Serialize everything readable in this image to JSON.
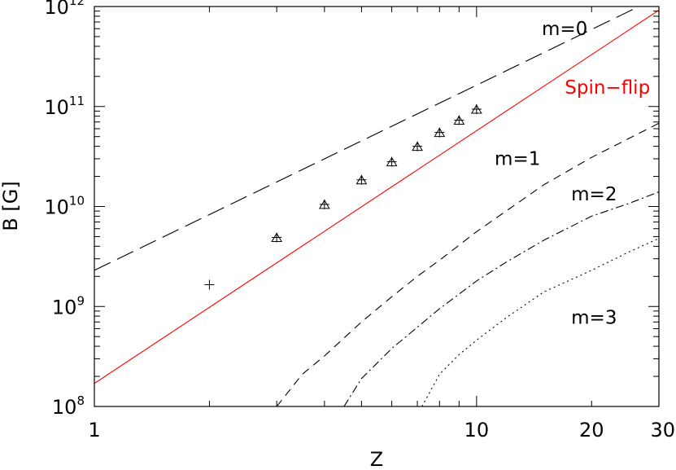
{
  "chart_data": {
    "type": "line",
    "title": "",
    "xlabel": "Z",
    "ylabel": "B [G]",
    "x_scale": "log",
    "y_scale": "log",
    "xlim": [
      1,
      30
    ],
    "ylim": [
      100000000.0,
      1000000000000.0
    ],
    "x_ticks": [
      {
        "value": 1,
        "label": "1"
      },
      {
        "value": 10,
        "label": "10"
      },
      {
        "value": 20,
        "label": "20"
      },
      {
        "value": 30,
        "label": "30"
      }
    ],
    "y_ticks": [
      {
        "value": 100000000.0,
        "base": "10",
        "exp": "8"
      },
      {
        "value": 1000000000.0,
        "base": "10",
        "exp": "9"
      },
      {
        "value": 10000000000.0,
        "base": "10",
        "exp": "10"
      },
      {
        "value": 100000000000.0,
        "base": "10",
        "exp": "11"
      },
      {
        "value": 1000000000000.0,
        "base": "10",
        "exp": "12"
      }
    ],
    "grid": false,
    "series": [
      {
        "name": "Spin−flip",
        "style": "solid",
        "color": "#ff0000",
        "x": [
          1,
          30
        ],
        "y": [
          170000000.0,
          920000000000.0
        ]
      },
      {
        "name": "m=0",
        "style": "long-dash",
        "color": "#000000",
        "x": [
          1,
          30
        ],
        "y": [
          2300000000.0,
          1250000000000.0
        ]
      },
      {
        "name": "m=1",
        "style": "dash",
        "color": "#000000",
        "x": [
          3.0,
          3.5,
          4.0,
          5.0,
          6.0,
          7.0,
          8.0,
          10.0,
          15.0,
          20.0,
          30.0
        ],
        "y": [
          100000000.0,
          210000000.0,
          320000000.0,
          700000000.0,
          1250000000.0,
          2000000000.0,
          2900000000.0,
          5600000000.0,
          16500000000.0,
          31000000000.0,
          68000000000.0
        ]
      },
      {
        "name": "m=2",
        "style": "dash-dot",
        "color": "#000000",
        "x": [
          4.5,
          5.0,
          6.0,
          7.0,
          8.0,
          10.0,
          12.0,
          15.0,
          20.0,
          25.0,
          30.0
        ],
        "y": [
          100000000.0,
          190000000.0,
          380000000.0,
          620000000.0,
          950000000.0,
          1800000000.0,
          2800000000.0,
          4600000000.0,
          8000000000.0,
          10700000000.0,
          14000000000.0
        ]
      },
      {
        "name": "m=3",
        "style": "dotted",
        "color": "#000000",
        "x": [
          7.2,
          8.0,
          9.0,
          10.0,
          12.0,
          15.0,
          20.0,
          25.0,
          30.0
        ],
        "y": [
          100000000.0,
          210000000.0,
          330000000.0,
          460000000.0,
          780000000.0,
          1400000000.0,
          2300000000.0,
          3500000000.0,
          4800000000.0
        ]
      }
    ],
    "markers": {
      "style": "triangle-and-plus",
      "points": [
        {
          "x": 2,
          "y": 1650000000.0,
          "symbol": "plus"
        },
        {
          "x": 3,
          "y": 4900000000.0,
          "symbol": "triangle-plus"
        },
        {
          "x": 4,
          "y": 10500000000.0,
          "symbol": "triangle-plus"
        },
        {
          "x": 5,
          "y": 18500000000.0,
          "symbol": "triangle-plus"
        },
        {
          "x": 6,
          "y": 28000000000.0,
          "symbol": "triangle-plus"
        },
        {
          "x": 7,
          "y": 40000000000.0,
          "symbol": "triangle-plus"
        },
        {
          "x": 8,
          "y": 55000000000.0,
          "symbol": "triangle-plus"
        },
        {
          "x": 9,
          "y": 73000000000.0,
          "symbol": "triangle-plus"
        },
        {
          "x": 10,
          "y": 94000000000.0,
          "symbol": "triangle-plus"
        }
      ]
    },
    "annotations": [
      {
        "text": "m=0",
        "x": 17.0,
        "y": 520000000000.0,
        "color": "#000000"
      },
      {
        "text": "Spin−flip",
        "x": 22.0,
        "y": 135000000000.0,
        "color": "#ff0000"
      },
      {
        "text": "m=1",
        "x": 12.8,
        "y": 26000000000.0,
        "color": "#000000"
      },
      {
        "text": "m=2",
        "x": 20.3,
        "y": 11500000000.0,
        "color": "#000000"
      },
      {
        "text": "m=3",
        "x": 20.3,
        "y": 670000000.0,
        "color": "#000000"
      }
    ]
  }
}
